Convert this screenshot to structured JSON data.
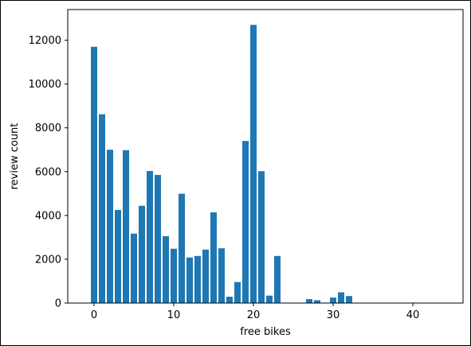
{
  "chart_data": {
    "type": "bar",
    "title": "",
    "xlabel": "free bikes",
    "ylabel": "review count",
    "xlim": [
      -3.3,
      46.3
    ],
    "ylim": [
      0,
      13400
    ],
    "xticks": [
      0,
      10,
      20,
      30,
      40
    ],
    "yticks": [
      0,
      2000,
      4000,
      6000,
      8000,
      10000,
      12000
    ],
    "bar_color": "#1f77b4",
    "grid": false,
    "x": [
      0,
      1,
      2,
      3,
      4,
      5,
      6,
      7,
      8,
      9,
      10,
      11,
      12,
      13,
      14,
      15,
      16,
      17,
      18,
      19,
      20,
      21,
      22,
      23,
      27,
      28,
      30,
      31,
      32
    ],
    "values": [
      11700,
      8620,
      7000,
      4250,
      6980,
      3170,
      4440,
      6030,
      5850,
      3050,
      2480,
      4990,
      2080,
      2150,
      2440,
      4140,
      2500,
      290,
      960,
      7400,
      12700,
      6020,
      340,
      2150,
      180,
      130,
      250,
      490,
      320
    ]
  }
}
